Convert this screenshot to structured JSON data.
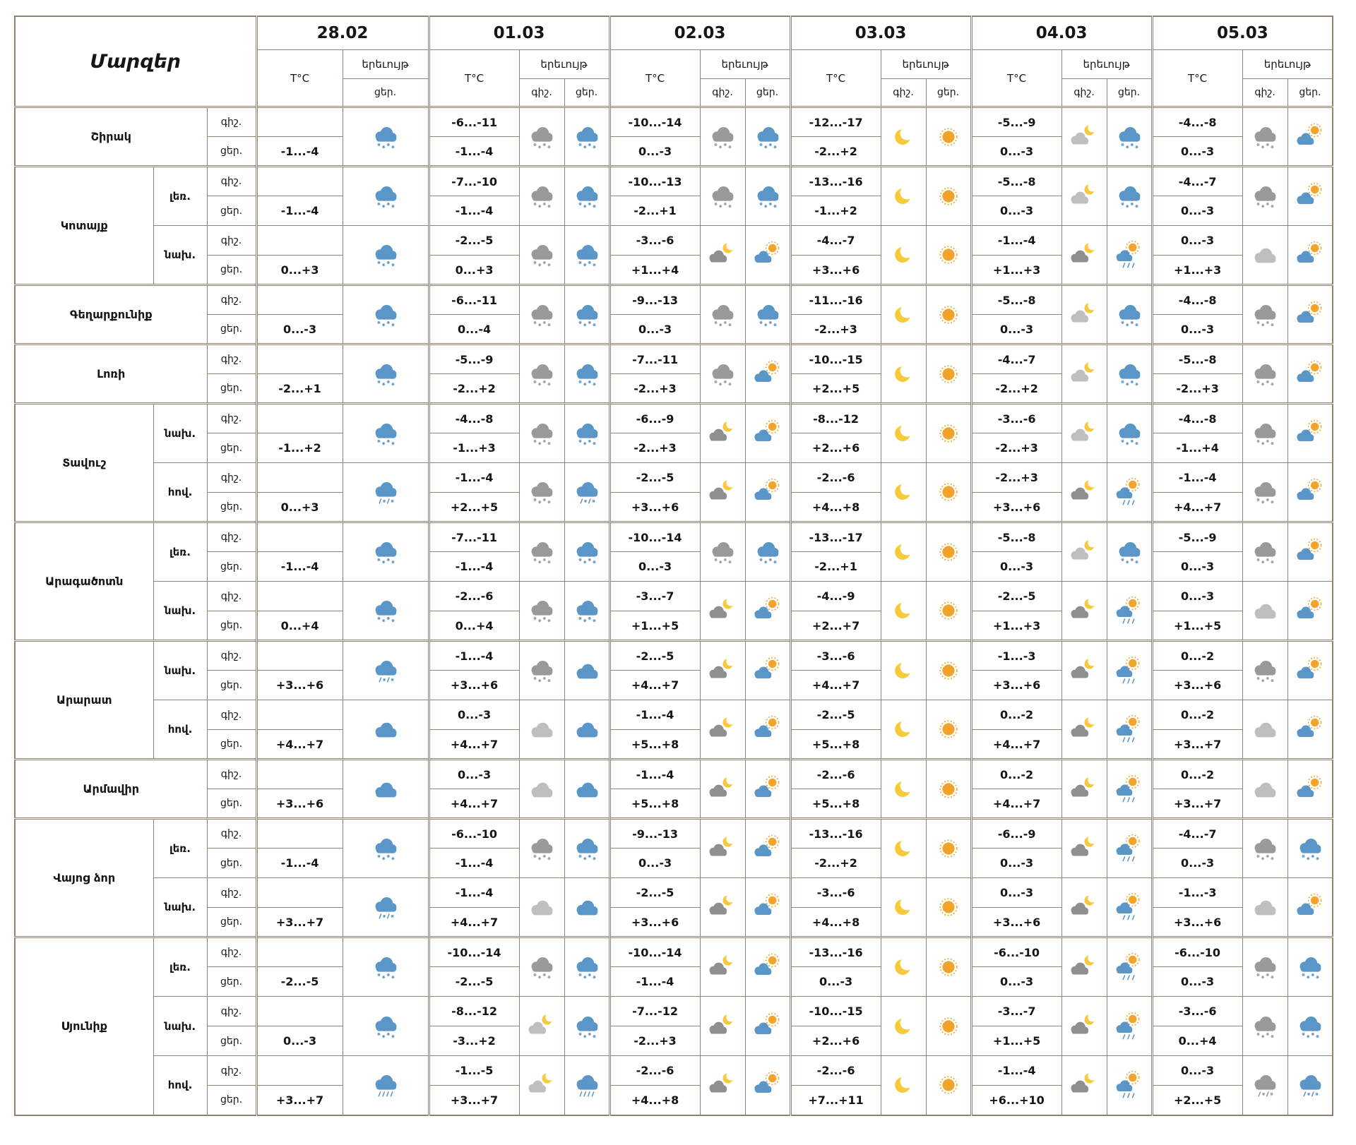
{
  "header": {
    "corner": "Մարզեր",
    "temp": "T°C",
    "phenomenon": "երեւույթ",
    "night": "գիշ.",
    "day": "ցեր.",
    "dates": [
      "28.02",
      "01.03",
      "02.03",
      "03.03",
      "04.03",
      "05.03"
    ]
  },
  "colors": {
    "border": "#8c8372",
    "text": "#161616",
    "cloud_blue": "#5b96c8",
    "cloud_gray": "#9a9a9a",
    "cloud_light_gray": "#bfbfbf",
    "moon_yellow": "#f7ca3a",
    "sun_orange": "#f2a32a"
  },
  "icon_types": [
    "snow-blue",
    "snow-gray",
    "rain-blue",
    "sleet-blue",
    "sleet-gray",
    "cloud-blue",
    "cloud-gray",
    "moon",
    "sun",
    "moon-cloud",
    "moon-cloud-light",
    "sun-cloud",
    "sun-cloud-rain"
  ],
  "regions": [
    {
      "name": "Շիրակ",
      "subrows": [
        {
          "zone": "",
          "temps": [
            [
              "",
              "-1...-4"
            ],
            [
              "-6...-11",
              "-1...-4"
            ],
            [
              "-10...-14",
              "0...-3"
            ],
            [
              "-12...-17",
              "-2...+2"
            ],
            [
              "-5...-9",
              "0...-3"
            ],
            [
              "-4...-8",
              "0...-3"
            ]
          ],
          "icons": [
            [
              "snow-blue"
            ],
            [
              "snow-gray",
              "snow-blue"
            ],
            [
              "snow-gray",
              "snow-blue"
            ],
            [
              "moon",
              "sun"
            ],
            [
              "moon-cloud-light",
              "snow-blue"
            ],
            [
              "snow-gray",
              "sun-cloud"
            ]
          ]
        }
      ]
    },
    {
      "name": "Կոտայք",
      "subrows": [
        {
          "zone": "լեռ.",
          "temps": [
            [
              "",
              "-1...-4"
            ],
            [
              "-7...-10",
              "-1...-4"
            ],
            [
              "-10...-13",
              "-2...+1"
            ],
            [
              "-13...-16",
              "-1...+2"
            ],
            [
              "-5...-8",
              "0...-3"
            ],
            [
              "-4...-7",
              "0...-3"
            ]
          ],
          "icons": [
            [
              "snow-blue"
            ],
            [
              "snow-gray",
              "snow-blue"
            ],
            [
              "snow-gray",
              "snow-blue"
            ],
            [
              "moon",
              "sun"
            ],
            [
              "moon-cloud-light",
              "snow-blue"
            ],
            [
              "snow-gray",
              "sun-cloud"
            ]
          ]
        },
        {
          "zone": "նախ.",
          "temps": [
            [
              "",
              "0...+3"
            ],
            [
              "-2...-5",
              "0...+3"
            ],
            [
              "-3...-6",
              "+1...+4"
            ],
            [
              "-4...-7",
              "+3...+6"
            ],
            [
              "-1...-4",
              "+1...+3"
            ],
            [
              "0...-3",
              "+1...+3"
            ]
          ],
          "icons": [
            [
              "snow-blue"
            ],
            [
              "snow-gray",
              "snow-blue"
            ],
            [
              "moon-cloud",
              "sun-cloud"
            ],
            [
              "moon",
              "sun"
            ],
            [
              "moon-cloud",
              "sun-cloud-rain"
            ],
            [
              "cloud-gray",
              "sun-cloud"
            ]
          ]
        }
      ]
    },
    {
      "name": "Գեղարքունիք",
      "subrows": [
        {
          "zone": "",
          "temps": [
            [
              "",
              "0...-3"
            ],
            [
              "-6...-11",
              "0...-4"
            ],
            [
              "-9...-13",
              "0...-3"
            ],
            [
              "-11...-16",
              "-2...+3"
            ],
            [
              "-5...-8",
              "0...-3"
            ],
            [
              "-4...-8",
              "0...-3"
            ]
          ],
          "icons": [
            [
              "snow-blue"
            ],
            [
              "snow-gray",
              "snow-blue"
            ],
            [
              "snow-gray",
              "snow-blue"
            ],
            [
              "moon",
              "sun"
            ],
            [
              "moon-cloud-light",
              "snow-blue"
            ],
            [
              "snow-gray",
              "sun-cloud"
            ]
          ]
        }
      ]
    },
    {
      "name": "Լոռի",
      "subrows": [
        {
          "zone": "",
          "temps": [
            [
              "",
              "-2...+1"
            ],
            [
              "-5...-9",
              "-2...+2"
            ],
            [
              "-7...-11",
              "-2...+3"
            ],
            [
              "-10...-15",
              "+2...+5"
            ],
            [
              "-4...-7",
              "-2...+2"
            ],
            [
              "-5...-8",
              "-2...+3"
            ]
          ],
          "icons": [
            [
              "snow-blue"
            ],
            [
              "snow-gray",
              "snow-blue"
            ],
            [
              "snow-gray",
              "sun-cloud"
            ],
            [
              "moon",
              "sun"
            ],
            [
              "moon-cloud-light",
              "snow-blue"
            ],
            [
              "snow-gray",
              "sun-cloud"
            ]
          ]
        }
      ]
    },
    {
      "name": "Տավուշ",
      "subrows": [
        {
          "zone": "նախ.",
          "temps": [
            [
              "",
              "-1...+2"
            ],
            [
              "-4...-8",
              "-1...+3"
            ],
            [
              "-6...-9",
              "-2...+3"
            ],
            [
              "-8...-12",
              "+2...+6"
            ],
            [
              "-3...-6",
              "-2...+3"
            ],
            [
              "-4...-8",
              "-1...+4"
            ]
          ],
          "icons": [
            [
              "snow-blue"
            ],
            [
              "snow-gray",
              "snow-blue"
            ],
            [
              "moon-cloud",
              "sun-cloud"
            ],
            [
              "moon",
              "sun"
            ],
            [
              "moon-cloud-light",
              "snow-blue"
            ],
            [
              "snow-gray",
              "sun-cloud"
            ]
          ]
        },
        {
          "zone": "հով.",
          "temps": [
            [
              "",
              "0...+3"
            ],
            [
              "-1...-4",
              "+2...+5"
            ],
            [
              "-2...-5",
              "+3...+6"
            ],
            [
              "-2...-6",
              "+4...+8"
            ],
            [
              "-2...+3",
              "+3...+6"
            ],
            [
              "-1...-4",
              "+4...+7"
            ]
          ],
          "icons": [
            [
              "sleet-blue"
            ],
            [
              "snow-gray",
              "sleet-blue"
            ],
            [
              "moon-cloud",
              "sun-cloud"
            ],
            [
              "moon",
              "sun"
            ],
            [
              "moon-cloud",
              "sun-cloud-rain"
            ],
            [
              "snow-gray",
              "sun-cloud"
            ]
          ]
        }
      ]
    },
    {
      "name": "Արագածոտն",
      "subrows": [
        {
          "zone": "լեռ.",
          "temps": [
            [
              "",
              "-1...-4"
            ],
            [
              "-7...-11",
              "-1...-4"
            ],
            [
              "-10...-14",
              "0...-3"
            ],
            [
              "-13...-17",
              "-2...+1"
            ],
            [
              "-5...-8",
              "0...-3"
            ],
            [
              "-5...-9",
              "0...-3"
            ]
          ],
          "icons": [
            [
              "snow-blue"
            ],
            [
              "snow-gray",
              "snow-blue"
            ],
            [
              "snow-gray",
              "snow-blue"
            ],
            [
              "moon",
              "sun"
            ],
            [
              "moon-cloud-light",
              "snow-blue"
            ],
            [
              "snow-gray",
              "sun-cloud"
            ]
          ]
        },
        {
          "zone": "նախ.",
          "temps": [
            [
              "",
              "0...+4"
            ],
            [
              "-2...-6",
              "0...+4"
            ],
            [
              "-3...-7",
              "+1...+5"
            ],
            [
              "-4...-9",
              "+2...+7"
            ],
            [
              "-2...-5",
              "+1...+3"
            ],
            [
              "0...-3",
              "+1...+5"
            ]
          ],
          "icons": [
            [
              "snow-blue"
            ],
            [
              "snow-gray",
              "snow-blue"
            ],
            [
              "moon-cloud",
              "sun-cloud"
            ],
            [
              "moon",
              "sun"
            ],
            [
              "moon-cloud",
              "sun-cloud-rain"
            ],
            [
              "cloud-gray",
              "sun-cloud"
            ]
          ]
        }
      ]
    },
    {
      "name": "Արարատ",
      "subrows": [
        {
          "zone": "նախ.",
          "temps": [
            [
              "",
              "+3...+6"
            ],
            [
              "-1...-4",
              "+3...+6"
            ],
            [
              "-2...-5",
              "+4...+7"
            ],
            [
              "-3...-6",
              "+4...+7"
            ],
            [
              "-1...-3",
              "+3...+6"
            ],
            [
              "0...-2",
              "+3...+6"
            ]
          ],
          "icons": [
            [
              "sleet-blue"
            ],
            [
              "snow-gray",
              "cloud-blue"
            ],
            [
              "moon-cloud",
              "sun-cloud"
            ],
            [
              "moon",
              "sun"
            ],
            [
              "moon-cloud",
              "sun-cloud-rain"
            ],
            [
              "snow-gray",
              "sun-cloud"
            ]
          ]
        },
        {
          "zone": "հով.",
          "temps": [
            [
              "",
              "+4...+7"
            ],
            [
              "0...-3",
              "+4...+7"
            ],
            [
              "-1...-4",
              "+5...+8"
            ],
            [
              "-2...-5",
              "+5...+8"
            ],
            [
              "0...-2",
              "+4...+7"
            ],
            [
              "0...-2",
              "+3...+7"
            ]
          ],
          "icons": [
            [
              "cloud-blue"
            ],
            [
              "cloud-gray",
              "cloud-blue"
            ],
            [
              "moon-cloud",
              "sun-cloud"
            ],
            [
              "moon",
              "sun"
            ],
            [
              "moon-cloud",
              "sun-cloud-rain"
            ],
            [
              "cloud-gray",
              "sun-cloud"
            ]
          ]
        }
      ]
    },
    {
      "name": "Արմավիր",
      "subrows": [
        {
          "zone": "",
          "temps": [
            [
              "",
              "+3...+6"
            ],
            [
              "0...-3",
              "+4...+7"
            ],
            [
              "-1...-4",
              "+5...+8"
            ],
            [
              "-2...-6",
              "+5...+8"
            ],
            [
              "0...-2",
              "+4...+7"
            ],
            [
              "0...-2",
              "+3...+7"
            ]
          ],
          "icons": [
            [
              "cloud-blue"
            ],
            [
              "cloud-gray",
              "cloud-blue"
            ],
            [
              "moon-cloud",
              "sun-cloud"
            ],
            [
              "moon",
              "sun"
            ],
            [
              "moon-cloud",
              "sun-cloud-rain"
            ],
            [
              "cloud-gray",
              "sun-cloud"
            ]
          ]
        }
      ]
    },
    {
      "name": "Վայոց ձոր",
      "subrows": [
        {
          "zone": "լեռ.",
          "temps": [
            [
              "",
              "-1...-4"
            ],
            [
              "-6...-10",
              "-1...-4"
            ],
            [
              "-9...-13",
              "0...-3"
            ],
            [
              "-13...-16",
              "-2...+2"
            ],
            [
              "-6...-9",
              "0...-3"
            ],
            [
              "-4...-7",
              "0...-3"
            ]
          ],
          "icons": [
            [
              "snow-blue"
            ],
            [
              "snow-gray",
              "snow-blue"
            ],
            [
              "moon-cloud",
              "sun-cloud"
            ],
            [
              "moon",
              "sun"
            ],
            [
              "moon-cloud",
              "sun-cloud-rain"
            ],
            [
              "snow-gray",
              "snow-blue"
            ]
          ]
        },
        {
          "zone": "նախ.",
          "temps": [
            [
              "",
              "+3...+7"
            ],
            [
              "-1...-4",
              "+4...+7"
            ],
            [
              "-2...-5",
              "+3...+6"
            ],
            [
              "-3...-6",
              "+4...+8"
            ],
            [
              "0...-3",
              "+3...+6"
            ],
            [
              "-1...-3",
              "+3...+6"
            ]
          ],
          "icons": [
            [
              "sleet-blue"
            ],
            [
              "cloud-gray",
              "cloud-blue"
            ],
            [
              "moon-cloud",
              "sun-cloud"
            ],
            [
              "moon",
              "sun"
            ],
            [
              "moon-cloud",
              "sun-cloud-rain"
            ],
            [
              "cloud-gray",
              "sun-cloud"
            ]
          ]
        }
      ]
    },
    {
      "name": "Սյունիք",
      "subrows": [
        {
          "zone": "լեռ.",
          "temps": [
            [
              "",
              "-2...-5"
            ],
            [
              "-10...-14",
              "-2...-5"
            ],
            [
              "-10...-14",
              "-1...-4"
            ],
            [
              "-13...-16",
              "0...-3"
            ],
            [
              "-6...-10",
              "0...-3"
            ],
            [
              "-6...-10",
              "0...-3"
            ]
          ],
          "icons": [
            [
              "snow-blue"
            ],
            [
              "snow-gray",
              "snow-blue"
            ],
            [
              "moon-cloud",
              "sun-cloud"
            ],
            [
              "moon",
              "sun"
            ],
            [
              "moon-cloud",
              "sun-cloud-rain"
            ],
            [
              "snow-gray",
              "snow-blue"
            ]
          ]
        },
        {
          "zone": "նախ.",
          "temps": [
            [
              "",
              "0...-3"
            ],
            [
              "-8...-12",
              "-3...+2"
            ],
            [
              "-7...-12",
              "-2...+3"
            ],
            [
              "-10...-15",
              "+2...+6"
            ],
            [
              "-3...-7",
              "+1...+5"
            ],
            [
              "-3...-6",
              "0...+4"
            ]
          ],
          "icons": [
            [
              "snow-blue"
            ],
            [
              "moon-cloud-light",
              "snow-blue"
            ],
            [
              "moon-cloud",
              "sun-cloud"
            ],
            [
              "moon",
              "sun"
            ],
            [
              "moon-cloud",
              "sun-cloud-rain"
            ],
            [
              "snow-gray",
              "snow-blue"
            ]
          ]
        },
        {
          "zone": "հով.",
          "temps": [
            [
              "",
              "+3...+7"
            ],
            [
              "-1...-5",
              "+3...+7"
            ],
            [
              "-2...-6",
              "+4...+8"
            ],
            [
              "-2...-6",
              "+7...+11"
            ],
            [
              "-1...-4",
              "+6...+10"
            ],
            [
              "0...-3",
              "+2...+5"
            ]
          ],
          "icons": [
            [
              "rain-blue"
            ],
            [
              "moon-cloud-light",
              "rain-blue"
            ],
            [
              "moon-cloud",
              "sun-cloud"
            ],
            [
              "moon",
              "sun"
            ],
            [
              "moon-cloud",
              "sun-cloud-rain"
            ],
            [
              "sleet-gray",
              "sleet-blue"
            ]
          ]
        }
      ]
    }
  ]
}
